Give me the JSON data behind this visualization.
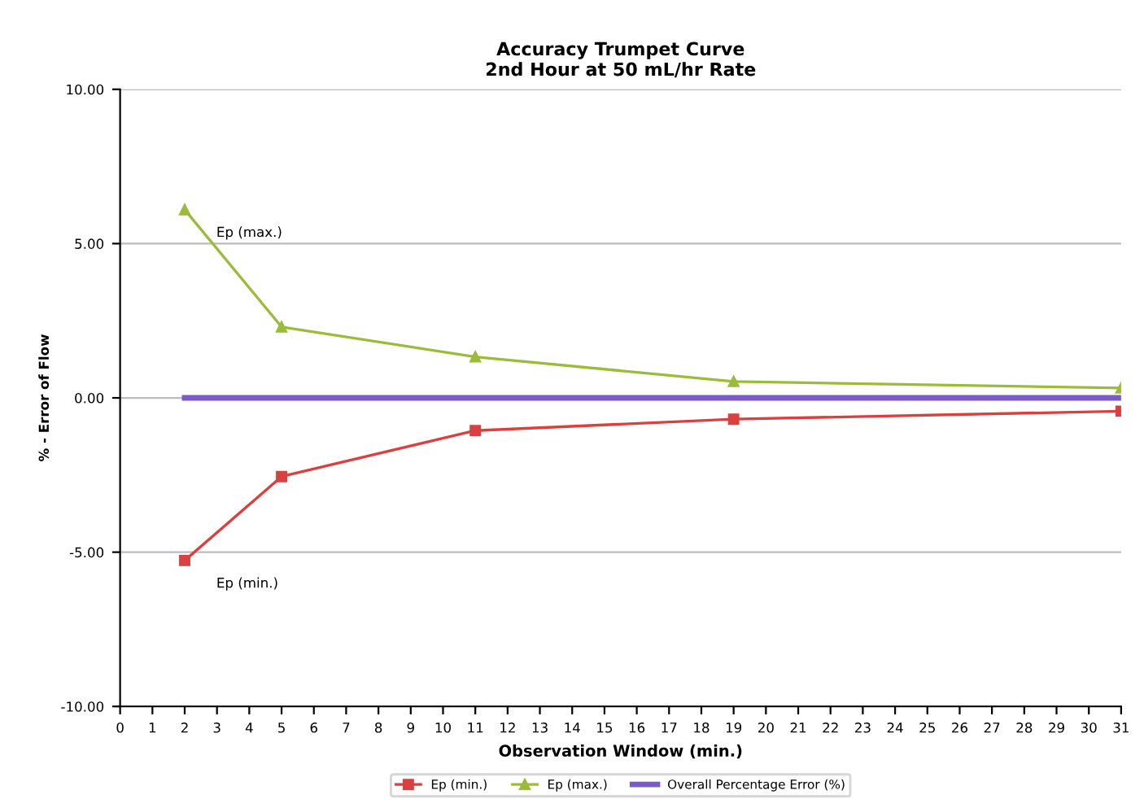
{
  "chart_data": {
    "type": "line",
    "title": "Accuracy Trumpet Curve\n2nd Hour at 50 mL/hr Rate",
    "xlabel": "Observation Window (min.)",
    "ylabel": "% - Error of Flow",
    "series": [
      {
        "name": "Ep (min.)",
        "color": "#d9403f",
        "x": [
          2,
          5,
          11,
          19,
          31
        ],
        "values": [
          -5.27,
          -2.55,
          -1.06,
          -0.69,
          -0.43
        ],
        "marker": "square"
      },
      {
        "name": "Ep (max.)",
        "color": "#9bbb3b",
        "x": [
          2,
          5,
          11,
          19,
          31
        ],
        "values": [
          6.1,
          2.3,
          1.33,
          0.53,
          0.32
        ],
        "marker": "triangle"
      },
      {
        "name": "Overall Percentage Error (%)",
        "color": "#7b5cc4",
        "x": [
          2,
          5,
          11,
          19,
          31
        ],
        "values": [
          0,
          0,
          0,
          0,
          0
        ],
        "marker": "none"
      }
    ],
    "xlim": [
      0,
      31
    ],
    "xticks": [
      0,
      1,
      2,
      3,
      4,
      5,
      6,
      7,
      8,
      9,
      10,
      11,
      12,
      13,
      14,
      15,
      16,
      17,
      18,
      19,
      20,
      21,
      22,
      23,
      24,
      25,
      26,
      27,
      28,
      29,
      30,
      31
    ],
    "ylim": [
      -10,
      10
    ],
    "yticks": [
      {
        "value": -10,
        "label": "-10.00"
      },
      {
        "value": -5,
        "label": "-5.00"
      },
      {
        "value": 0,
        "label": "0.00"
      },
      {
        "value": 5,
        "label": "5.00"
      },
      {
        "value": 10,
        "label": "10.00"
      }
    ],
    "grid": "y",
    "legend": "bottom",
    "annotations": [
      {
        "text": "Ep (max.)",
        "x": 2,
        "y": 6.1
      },
      {
        "text": "Ep (min.)",
        "x": 2,
        "y": -5.27
      }
    ]
  }
}
